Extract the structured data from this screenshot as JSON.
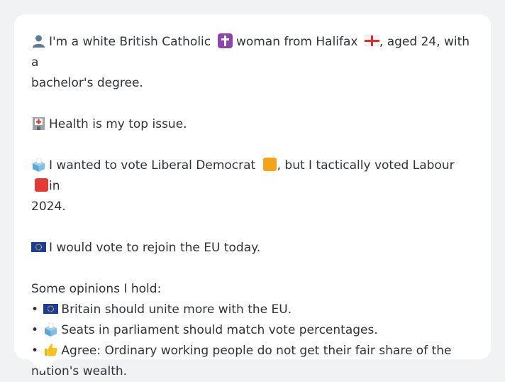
{
  "card": {
    "intro_part1": "I'm a white British Catholic",
    "intro_part2": "woman from Halifax",
    "intro_part3": ", aged 24, with a",
    "intro_line2": "bachelor's degree.",
    "health": "Health is my top issue.",
    "vote_part1": "I wanted to vote Liberal Democrat",
    "vote_part2": ", but I tactically voted Labour",
    "vote_part3": "in",
    "vote_line2": "2024.",
    "eu": "I would vote to rejoin the EU today.",
    "opinions_heading": "Some opinions I hold:",
    "opinions": [
      {
        "bullet": "•",
        "text": "Britain should unite more with the EU."
      },
      {
        "bullet": "•",
        "text": "Seats in parliament should match vote percentages."
      },
      {
        "bullet": "•",
        "text": "Agree: Ordinary working people do not get their fair share of the",
        "text_line2": "nation's wealth."
      }
    ]
  },
  "icons": {
    "person": "person-icon",
    "cross": "latin-cross-icon",
    "flag_england": "england-flag-icon",
    "hospital": "hospital-icon",
    "ballot": "ballot-box-icon",
    "orange_square": "orange-square-icon",
    "red_square": "red-square-icon",
    "eu_flag": "eu-flag-icon",
    "thumbs_up": "thumbs-up-icon"
  },
  "colors": {
    "background": "#f1f2f4",
    "card": "#ffffff",
    "text": "#2f3337",
    "libdem": "#f9a825",
    "labour": "#e53935",
    "cross_bg": "#8e44ad",
    "eu_blue": "#1c3c9c"
  }
}
